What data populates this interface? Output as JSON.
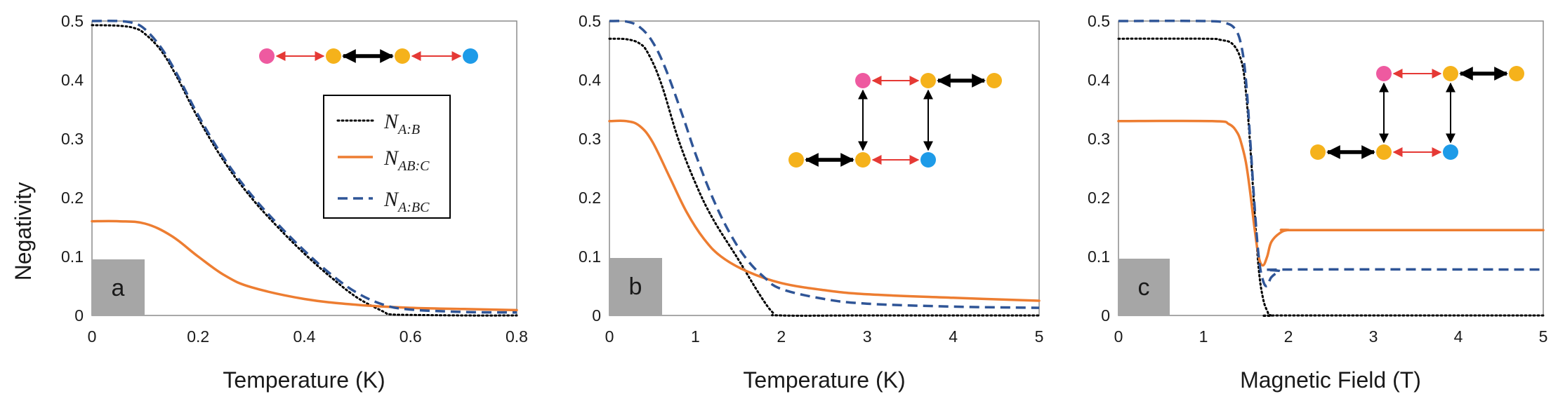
{
  "colors": {
    "N_A_B": "#000000",
    "N_AB_C": "#ED7D31",
    "N_A_BC": "#2F5597",
    "pink": "#EE5AA0",
    "yellow": "#F5B21B",
    "blue": "#1E9BE8",
    "red_link": "#E53935",
    "label_box": "#A6A6A6",
    "frame": "#8C8C8C"
  },
  "legend": {
    "entries": [
      {
        "key": "N_A_B",
        "symbol": "N",
        "subscript": "A:B",
        "style": "dotted"
      },
      {
        "key": "N_AB_C",
        "symbol": "N",
        "subscript": "AB:C",
        "style": "solid"
      },
      {
        "key": "N_A_BC",
        "symbol": "N",
        "subscript": "A:BC",
        "style": "dashed"
      }
    ]
  },
  "chart_data": [
    {
      "type": "line",
      "panel_label": "a",
      "xlabel": "Temperature (K)",
      "ylabel": "Negativity",
      "xlim": [
        0,
        0.8
      ],
      "ylim": [
        0,
        0.5
      ],
      "xticks": [
        "0",
        "0.2",
        "0.4",
        "0.6",
        "0.8"
      ],
      "yticks": [
        "0",
        "0.1",
        "0.2",
        "0.3",
        "0.4",
        "0.5"
      ],
      "series": [
        {
          "name": "N_A:B",
          "key": "N_A_B",
          "x": [
            0,
            0.05,
            0.08,
            0.1,
            0.13,
            0.16,
            0.2,
            0.25,
            0.3,
            0.35,
            0.4,
            0.45,
            0.5,
            0.55,
            0.56,
            0.6,
            0.7,
            0.8
          ],
          "y": [
            0.493,
            0.492,
            0.488,
            0.478,
            0.45,
            0.405,
            0.335,
            0.26,
            0.2,
            0.15,
            0.105,
            0.065,
            0.03,
            0.006,
            0.002,
            0.001,
            0.0,
            0.0
          ]
        },
        {
          "name": "N_AB:C",
          "key": "N_AB_C",
          "x": [
            0,
            0.05,
            0.1,
            0.15,
            0.2,
            0.25,
            0.3,
            0.4,
            0.5,
            0.6,
            0.7,
            0.8
          ],
          "y": [
            0.16,
            0.16,
            0.156,
            0.135,
            0.1,
            0.068,
            0.048,
            0.028,
            0.018,
            0.013,
            0.011,
            0.009
          ]
        },
        {
          "name": "N_A:BC",
          "key": "N_A_BC",
          "x": [
            0,
            0.05,
            0.08,
            0.1,
            0.13,
            0.16,
            0.2,
            0.25,
            0.3,
            0.35,
            0.4,
            0.45,
            0.5,
            0.55,
            0.6,
            0.7,
            0.8
          ],
          "y": [
            0.5,
            0.5,
            0.496,
            0.486,
            0.455,
            0.41,
            0.34,
            0.265,
            0.205,
            0.155,
            0.11,
            0.07,
            0.038,
            0.018,
            0.01,
            0.006,
            0.005
          ]
        }
      ],
      "inset": {
        "nodes": [
          {
            "id": "n1",
            "color": "pink"
          },
          {
            "id": "n2",
            "color": "yellow"
          },
          {
            "id": "n3",
            "color": "yellow"
          },
          {
            "id": "n4",
            "color": "blue"
          }
        ],
        "links": [
          {
            "from": "n1",
            "to": "n2",
            "kind": "weak"
          },
          {
            "from": "n2",
            "to": "n3",
            "kind": "strong"
          },
          {
            "from": "n3",
            "to": "n4",
            "kind": "weak"
          }
        ]
      }
    },
    {
      "type": "line",
      "panel_label": "b",
      "xlabel": "Temperature (K)",
      "ylabel": "",
      "xlim": [
        0,
        5
      ],
      "ylim": [
        0,
        0.5
      ],
      "xticks": [
        "0",
        "1",
        "2",
        "3",
        "4",
        "5"
      ],
      "yticks": [
        "0",
        "0.1",
        "0.2",
        "0.3",
        "0.4",
        "0.5"
      ],
      "series": [
        {
          "name": "N_A:B",
          "key": "N_A_B",
          "x": [
            0,
            0.2,
            0.35,
            0.45,
            0.6,
            0.8,
            1.0,
            1.2,
            1.5,
            1.75,
            1.9,
            2.0,
            3.0,
            5.0
          ],
          "y": [
            0.47,
            0.469,
            0.462,
            0.445,
            0.395,
            0.3,
            0.225,
            0.165,
            0.095,
            0.035,
            0.005,
            0.0,
            0.0,
            0.0
          ]
        },
        {
          "name": "N_AB:C",
          "key": "N_AB_C",
          "x": [
            0,
            0.2,
            0.35,
            0.5,
            0.7,
            0.9,
            1.1,
            1.3,
            1.6,
            2.0,
            2.5,
            3.0,
            4.0,
            5.0
          ],
          "y": [
            0.33,
            0.33,
            0.322,
            0.295,
            0.235,
            0.175,
            0.13,
            0.1,
            0.075,
            0.055,
            0.043,
            0.036,
            0.03,
            0.025
          ]
        },
        {
          "name": "N_A:BC",
          "key": "N_A_BC",
          "x": [
            0,
            0.2,
            0.35,
            0.5,
            0.65,
            0.85,
            1.0,
            1.2,
            1.4,
            1.6,
            1.8,
            2.0,
            2.5,
            3.0,
            4.0,
            5.0
          ],
          "y": [
            0.5,
            0.499,
            0.49,
            0.465,
            0.42,
            0.34,
            0.275,
            0.2,
            0.14,
            0.095,
            0.065,
            0.045,
            0.028,
            0.02,
            0.015,
            0.013
          ]
        }
      ],
      "inset": {
        "nodes": [
          {
            "id": "t1",
            "color": "pink"
          },
          {
            "id": "t2",
            "color": "yellow"
          },
          {
            "id": "t3",
            "color": "yellow"
          },
          {
            "id": "b1",
            "color": "yellow"
          },
          {
            "id": "b2",
            "color": "yellow"
          },
          {
            "id": "b3",
            "color": "blue"
          }
        ],
        "links": [
          {
            "from": "t1",
            "to": "t2",
            "kind": "weak"
          },
          {
            "from": "t2",
            "to": "t3",
            "kind": "strong"
          },
          {
            "from": "b1",
            "to": "b2",
            "kind": "strong"
          },
          {
            "from": "b2",
            "to": "b3",
            "kind": "weak"
          },
          {
            "from": "t1",
            "to": "b2",
            "kind": "thin"
          },
          {
            "from": "t2",
            "to": "b3",
            "kind": "thin"
          }
        ]
      }
    },
    {
      "type": "line",
      "panel_label": "c",
      "xlabel": "Magnetic Field (T)",
      "ylabel": "",
      "xlim": [
        0,
        5
      ],
      "ylim": [
        0,
        0.5
      ],
      "xticks": [
        "0",
        "1",
        "2",
        "3",
        "4",
        "5"
      ],
      "yticks": [
        "0",
        "0.1",
        "0.2",
        "0.3",
        "0.4",
        "0.5"
      ],
      "series": [
        {
          "name": "N_A:B",
          "key": "N_A_B",
          "x": [
            0,
            1.0,
            1.2,
            1.35,
            1.45,
            1.5,
            1.55,
            1.6,
            1.65,
            1.7,
            1.75,
            1.8,
            2.0,
            5.0
          ],
          "y": [
            0.47,
            0.47,
            0.468,
            0.46,
            0.43,
            0.38,
            0.29,
            0.18,
            0.08,
            0.03,
            0.008,
            0.0,
            0.0,
            0.0
          ]
        },
        {
          "name": "N_AB:C",
          "key": "N_AB_C",
          "x": [
            0,
            1.1,
            1.3,
            1.4,
            1.45,
            1.5,
            1.55,
            1.6,
            1.65,
            1.7,
            1.75,
            1.8,
            1.9,
            2.0,
            2.2,
            5.0
          ],
          "y": [
            0.33,
            0.33,
            0.325,
            0.31,
            0.29,
            0.26,
            0.21,
            0.15,
            0.1,
            0.085,
            0.1,
            0.125,
            0.14,
            0.145,
            0.145,
            0.145
          ]
        },
        {
          "name": "N_A:BC",
          "key": "N_A_BC",
          "x": [
            0,
            1.0,
            1.25,
            1.38,
            1.45,
            1.5,
            1.55,
            1.6,
            1.65,
            1.7,
            1.75,
            1.8,
            1.9,
            2.0,
            5.0
          ],
          "y": [
            0.5,
            0.5,
            0.497,
            0.485,
            0.455,
            0.4,
            0.3,
            0.19,
            0.1,
            0.06,
            0.05,
            0.065,
            0.075,
            0.078,
            0.078
          ]
        }
      ],
      "inset": {
        "nodes": [
          {
            "id": "t1",
            "color": "pink"
          },
          {
            "id": "t2",
            "color": "yellow"
          },
          {
            "id": "t3",
            "color": "yellow"
          },
          {
            "id": "b1",
            "color": "yellow"
          },
          {
            "id": "b2",
            "color": "yellow"
          },
          {
            "id": "b3",
            "color": "blue"
          }
        ],
        "links": [
          {
            "from": "t1",
            "to": "t2",
            "kind": "weak"
          },
          {
            "from": "t2",
            "to": "t3",
            "kind": "strong"
          },
          {
            "from": "b1",
            "to": "b2",
            "kind": "strong"
          },
          {
            "from": "b2",
            "to": "b3",
            "kind": "weak"
          },
          {
            "from": "t1",
            "to": "b2",
            "kind": "thin"
          },
          {
            "from": "t2",
            "to": "b3",
            "kind": "thin"
          }
        ]
      }
    }
  ]
}
